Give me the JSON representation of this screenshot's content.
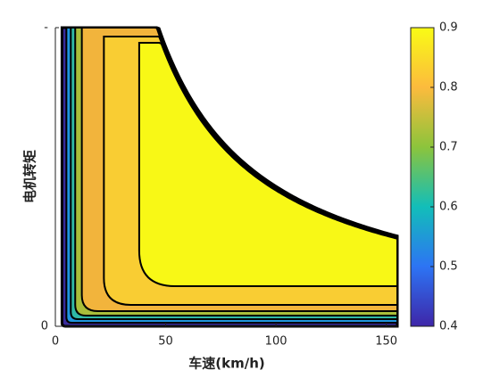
{
  "chart_data": {
    "type": "contour",
    "xlabel": "车速(km/h)",
    "ylabel": "电机转矩",
    "xlim": [
      0,
      155
    ],
    "xticks": [
      0,
      50,
      100,
      150
    ],
    "ylim": [
      0,
      1
    ],
    "yticks": [
      0,
      {
        "value": 1,
        "label": "-"
      }
    ],
    "levels": [
      0.45,
      0.6,
      0.7,
      0.75,
      0.8,
      0.85,
      0.9
    ],
    "level_colors": [
      "#3a2c9c",
      "#1f96de",
      "#2fb8a6",
      "#a9be3a",
      "#f2b43c",
      "#f9cd33",
      "#f8f816"
    ],
    "clim": [
      0.4,
      0.9
    ],
    "cticks": [
      0.4,
      0.5,
      0.6,
      0.7,
      0.8,
      0.9
    ],
    "colormap": [
      "#3e26a8",
      "#2d74f4",
      "#12beb9",
      "#8cc43c",
      "#fcbb3d",
      "#f9fb15"
    ]
  }
}
